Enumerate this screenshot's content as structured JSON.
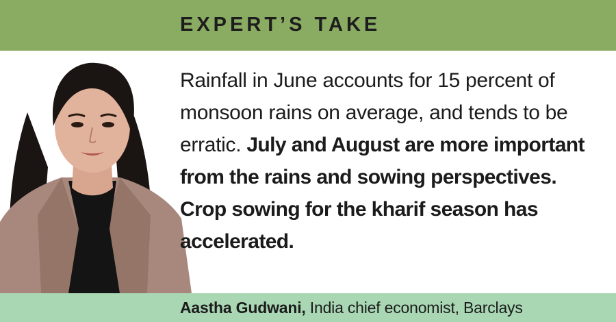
{
  "header": {
    "title": "EXPERT’S TAKE"
  },
  "quote": {
    "regular": "Rainfall in June accounts for 15 percent of monsoon rains on average, and tends to be erratic.",
    "bold": "July and August are more important from the rains and sowing perspectives. Crop sowing for the kharif season has accelerated."
  },
  "credit": {
    "name": "Aastha Gudwani,",
    "role": "India chief economist, Barclays"
  },
  "colors": {
    "header_band": "#8aab62",
    "footer_band": "#a9d7b4",
    "text": "#1b1b1b"
  },
  "portrait": {
    "icon": "person-photo"
  }
}
